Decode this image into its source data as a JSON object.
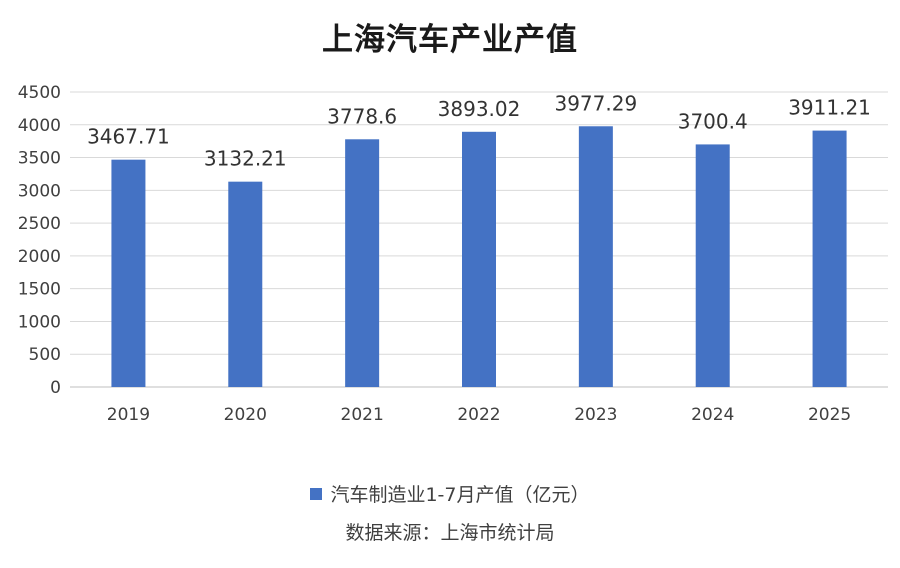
{
  "chart_data": {
    "type": "bar",
    "title": "上海汽车产业产值",
    "categories": [
      "2019",
      "2020",
      "2021",
      "2022",
      "2023",
      "2024",
      "2025"
    ],
    "series": [
      {
        "name": "汽车制造业1-7月产值（亿元）",
        "values": [
          3467.71,
          3132.21,
          3778.6,
          3893.02,
          3977.29,
          3700.4,
          3911.21
        ],
        "labels": [
          "3467.71",
          "3132.21",
          "3778.6",
          "3893.02",
          "3977.29",
          "3700.4",
          "3911.21"
        ],
        "color": "#4472c4"
      }
    ],
    "ylim": [
      0,
      4500
    ],
    "yticks": [
      "0",
      "500",
      "1000",
      "1500",
      "2000",
      "2500",
      "3000",
      "3500",
      "4000",
      "4500"
    ],
    "grid": true,
    "legend_position": "bottom",
    "source": "数据来源：上海市统计局"
  }
}
